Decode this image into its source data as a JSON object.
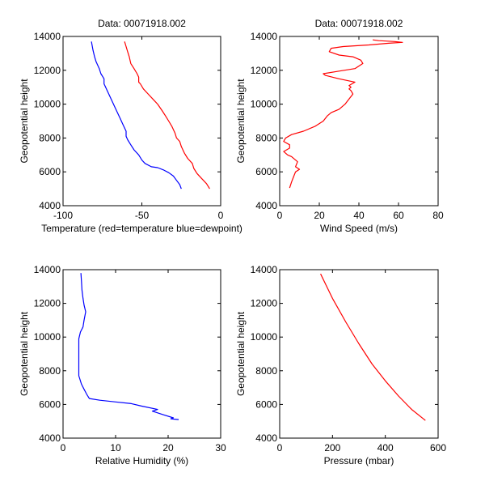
{
  "chart_data": [
    {
      "type": "line",
      "title": "Data: 00071918.002",
      "xlabel": "Temperature (red=temperature blue=dewpoint)",
      "ylabel": "Geopotential height",
      "xlim": [
        -100,
        0
      ],
      "ylim": [
        4000,
        14000
      ],
      "xticks": [
        "-100",
        "-50",
        "0"
      ],
      "yticks": [
        "4000",
        "6000",
        "8000",
        "10000",
        "12000",
        "14000"
      ],
      "series": [
        {
          "name": "temperature",
          "color": "#ff0000",
          "x": [
            -7,
            -9,
            -12,
            -15,
            -17,
            -18,
            -21,
            -23,
            -25,
            -26,
            -28,
            -29,
            -31,
            -33,
            -35,
            -37,
            -40,
            -43,
            -46,
            -49,
            -51,
            -52,
            -52,
            -53,
            -55,
            -57,
            -58,
            -59,
            -60,
            -61
          ],
          "y": [
            5000,
            5300,
            5600,
            5900,
            6200,
            6500,
            6800,
            7100,
            7500,
            7800,
            8000,
            8300,
            8700,
            9000,
            9300,
            9600,
            10000,
            10300,
            10600,
            10900,
            11200,
            11300,
            11600,
            11800,
            12100,
            12400,
            12800,
            13100,
            13400,
            13700
          ]
        },
        {
          "name": "dewpoint",
          "color": "#0000ff",
          "x": [
            -25,
            -26,
            -28,
            -30,
            -33,
            -36,
            -40,
            -44,
            -48,
            -50,
            -52,
            -55,
            -57,
            -59,
            -60,
            -60,
            -62,
            -64,
            -66,
            -68,
            -70,
            -72,
            -73,
            -74,
            -74,
            -76,
            -77,
            -79,
            -80,
            -81,
            -82
          ],
          "y": [
            5000,
            5250,
            5500,
            5750,
            5950,
            6100,
            6250,
            6300,
            6500,
            6700,
            7000,
            7300,
            7600,
            7900,
            8100,
            8400,
            8800,
            9200,
            9600,
            10000,
            10400,
            10800,
            11000,
            11200,
            11500,
            11800,
            12100,
            12500,
            12800,
            13200,
            13700
          ]
        }
      ]
    },
    {
      "type": "line",
      "title": "Data: 00071918.002",
      "xlabel": "Wind Speed (m/s)",
      "ylabel": "Geopotential height",
      "xlim": [
        0,
        80
      ],
      "ylim": [
        4000,
        14000
      ],
      "xticks": [
        "0",
        "20",
        "40",
        "60",
        "80"
      ],
      "yticks": [
        "4000",
        "6000",
        "8000",
        "10000",
        "12000",
        "14000"
      ],
      "series": [
        {
          "name": "wind-speed",
          "color": "#ff0000",
          "x": [
            5,
            6,
            7,
            8,
            10,
            8,
            9,
            6,
            4,
            2,
            5,
            5,
            2,
            3,
            6,
            12,
            18,
            22,
            24,
            26,
            30,
            33,
            35,
            37,
            36,
            35,
            36,
            35,
            38,
            30,
            23,
            22,
            30,
            38,
            42,
            41,
            37,
            30,
            25,
            26,
            32,
            45,
            55,
            62,
            58,
            50,
            47
          ],
          "y": [
            5050,
            5400,
            5700,
            6000,
            6150,
            6300,
            6600,
            6900,
            7000,
            7200,
            7400,
            7600,
            7800,
            8000,
            8200,
            8400,
            8700,
            9000,
            9300,
            9500,
            9700,
            10000,
            10300,
            10600,
            10800,
            10900,
            11000,
            11100,
            11300,
            11500,
            11700,
            11800,
            11950,
            12100,
            12400,
            12600,
            12800,
            12900,
            13100,
            13300,
            13400,
            13500,
            13600,
            13650,
            13700,
            13750,
            13800
          ]
        }
      ]
    },
    {
      "type": "line",
      "title": "",
      "xlabel": "Relative Humidity (%)",
      "ylabel": "Geopotential height",
      "xlim": [
        0,
        30
      ],
      "ylim": [
        4000,
        14000
      ],
      "xticks": [
        "0",
        "10",
        "20",
        "30"
      ],
      "yticks": [
        "4000",
        "6000",
        "8000",
        "10000",
        "12000",
        "14000"
      ],
      "series": [
        {
          "name": "relative-humidity",
          "color": "#0000ff",
          "x": [
            22,
            20.5,
            21,
            19,
            18,
            17,
            18,
            15,
            13,
            10,
            7,
            5,
            4.5,
            4,
            3.5,
            3,
            3,
            3,
            3.3,
            3.8,
            4,
            4.3,
            4,
            3.8,
            3.6,
            3.5,
            3.4
          ],
          "y": [
            5100,
            5150,
            5200,
            5400,
            5500,
            5600,
            5700,
            5900,
            6050,
            6150,
            6250,
            6350,
            6600,
            6900,
            7200,
            7700,
            8500,
            9900,
            10300,
            10600,
            11000,
            11500,
            11900,
            12300,
            12800,
            13300,
            13800
          ]
        }
      ]
    },
    {
      "type": "line",
      "title": "",
      "xlabel": "Pressure (mbar)",
      "ylabel": "Geopotential height",
      "xlim": [
        0,
        600
      ],
      "ylim": [
        4000,
        14000
      ],
      "xticks": [
        "0",
        "200",
        "400",
        "600"
      ],
      "yticks": [
        "4000",
        "6000",
        "8000",
        "10000",
        "12000",
        "14000"
      ],
      "series": [
        {
          "name": "pressure",
          "color": "#ff0000",
          "x": [
            552,
            500,
            450,
            400,
            350,
            300,
            250,
            200,
            175,
            155
          ],
          "y": [
            5050,
            5700,
            6500,
            7400,
            8400,
            9600,
            10900,
            12300,
            13100,
            13750
          ]
        }
      ]
    }
  ]
}
